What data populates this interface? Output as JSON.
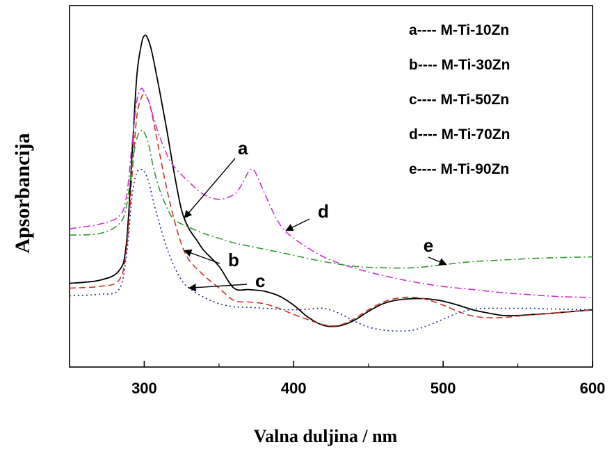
{
  "chart_data": {
    "type": "line",
    "title": "",
    "xlabel": "Valna duljina / nm",
    "ylabel": "Apsorbancija",
    "xlim": [
      250,
      600
    ],
    "ylim": [
      0,
      1
    ],
    "x_ticks": [
      300,
      400,
      500,
      600
    ],
    "x_tick_labels": [
      "300",
      "400",
      "500",
      "600"
    ],
    "y_ticks_shown": false,
    "grid": false,
    "legend_position": "top-right",
    "legend": [
      {
        "key": "a",
        "label": "a---- M-Ti-10Zn"
      },
      {
        "key": "b",
        "label": "b---- M-Ti-30Zn"
      },
      {
        "key": "c",
        "label": "c---- M-Ti-50Zn"
      },
      {
        "key": "d",
        "label": "d---- M-Ti-70Zn"
      },
      {
        "key": "e",
        "label": "e---- M-Ti-90Zn"
      }
    ],
    "series": [
      {
        "key": "a",
        "color": "#000000",
        "dash": "solid",
        "x": [
          250,
          270,
          283,
          288,
          292,
          295,
          298,
          300,
          302,
          305,
          310,
          315,
          320,
          325,
          330,
          335,
          340,
          350,
          360,
          370,
          380,
          390,
          400,
          410,
          420,
          430,
          440,
          450,
          460,
          470,
          480,
          490,
          500,
          510,
          520,
          530,
          540,
          550,
          560,
          570,
          580,
          590,
          600
        ],
        "y": [
          0.195,
          0.205,
          0.235,
          0.32,
          0.62,
          0.86,
          0.96,
          0.99,
          0.985,
          0.94,
          0.82,
          0.69,
          0.55,
          0.43,
          0.37,
          0.335,
          0.3,
          0.25,
          0.18,
          0.175,
          0.17,
          0.155,
          0.125,
          0.085,
          0.06,
          0.058,
          0.075,
          0.105,
          0.13,
          0.142,
          0.146,
          0.145,
          0.138,
          0.125,
          0.11,
          0.1,
          0.092,
          0.092,
          0.095,
          0.098,
          0.102,
          0.106,
          0.11
        ]
      },
      {
        "key": "b",
        "color": "#cc3322",
        "dash": "dashed",
        "x": [
          250,
          270,
          283,
          288,
          292,
          295,
          298,
          300,
          303,
          306,
          310,
          315,
          320,
          325,
          330,
          340,
          350,
          360,
          370,
          380,
          390,
          400,
          410,
          420,
          430,
          440,
          450,
          460,
          470,
          480,
          490,
          500,
          510,
          520,
          530,
          540,
          550,
          560,
          570,
          580,
          590,
          600
        ],
        "y": [
          0.18,
          0.185,
          0.205,
          0.3,
          0.55,
          0.73,
          0.79,
          0.8,
          0.78,
          0.72,
          0.62,
          0.5,
          0.4,
          0.32,
          0.27,
          0.22,
          0.18,
          0.14,
          0.135,
          0.13,
          0.115,
          0.095,
          0.078,
          0.062,
          0.06,
          0.08,
          0.11,
          0.135,
          0.148,
          0.15,
          0.142,
          0.125,
          0.105,
          0.09,
          0.085,
          0.085,
          0.09,
          0.094,
          0.098,
          0.102,
          0.106,
          0.11
        ]
      },
      {
        "key": "c",
        "color": "#1a2a99",
        "dash": "dotted",
        "x": [
          250,
          270,
          283,
          288,
          292,
          295,
          298,
          300,
          303,
          306,
          310,
          315,
          320,
          325,
          330,
          340,
          350,
          360,
          370,
          380,
          390,
          400,
          410,
          420,
          430,
          440,
          450,
          460,
          470,
          480,
          490,
          500,
          510,
          520,
          530,
          540,
          550,
          560,
          570,
          580,
          590,
          600
        ],
        "y": [
          0.155,
          0.16,
          0.175,
          0.28,
          0.48,
          0.55,
          0.56,
          0.555,
          0.52,
          0.46,
          0.39,
          0.31,
          0.25,
          0.205,
          0.18,
          0.15,
          0.13,
          0.12,
          0.118,
          0.115,
          0.112,
          0.11,
          0.112,
          0.115,
          0.1,
          0.075,
          0.055,
          0.045,
          0.042,
          0.045,
          0.06,
          0.08,
          0.1,
          0.112,
          0.115,
          0.115,
          0.115,
          0.115,
          0.113,
          0.112,
          0.111,
          0.11
        ]
      },
      {
        "key": "d",
        "color": "#cc33cc",
        "dash": "dashdot",
        "x": [
          250,
          270,
          283,
          288,
          292,
          295,
          298,
          300,
          303,
          306,
          310,
          315,
          320,
          330,
          340,
          350,
          360,
          365,
          370,
          373,
          376,
          380,
          390,
          400,
          420,
          440,
          460,
          480,
          500,
          520,
          540,
          560,
          580,
          600
        ],
        "y": [
          0.37,
          0.385,
          0.41,
          0.47,
          0.65,
          0.78,
          0.82,
          0.81,
          0.78,
          0.73,
          0.67,
          0.61,
          0.57,
          0.52,
          0.48,
          0.465,
          0.48,
          0.51,
          0.555,
          0.56,
          0.535,
          0.49,
          0.39,
          0.34,
          0.28,
          0.245,
          0.22,
          0.2,
          0.185,
          0.175,
          0.165,
          0.158,
          0.152,
          0.15
        ]
      },
      {
        "key": "e",
        "color": "#339933",
        "dash": "dashdot",
        "x": [
          250,
          270,
          283,
          288,
          292,
          295,
          298,
          300,
          303,
          306,
          310,
          315,
          320,
          330,
          340,
          350,
          360,
          380,
          400,
          420,
          440,
          460,
          480,
          500,
          520,
          540,
          560,
          580,
          600
        ],
        "y": [
          0.35,
          0.355,
          0.385,
          0.44,
          0.58,
          0.66,
          0.685,
          0.68,
          0.64,
          0.57,
          0.5,
          0.44,
          0.4,
          0.375,
          0.355,
          0.34,
          0.325,
          0.305,
          0.285,
          0.265,
          0.25,
          0.245,
          0.245,
          0.255,
          0.265,
          0.27,
          0.275,
          0.278,
          0.28
        ]
      }
    ],
    "annotations": [
      {
        "text": "a",
        "target_series": "a",
        "target_x": 327
      },
      {
        "text": "b",
        "target_series": "b",
        "target_x": 327
      },
      {
        "text": "c",
        "target_series": "c",
        "target_x": 330
      },
      {
        "text": "d",
        "target_series": "d",
        "target_x": 395
      },
      {
        "text": "e",
        "target_series": "e",
        "target_x": 502
      }
    ]
  }
}
